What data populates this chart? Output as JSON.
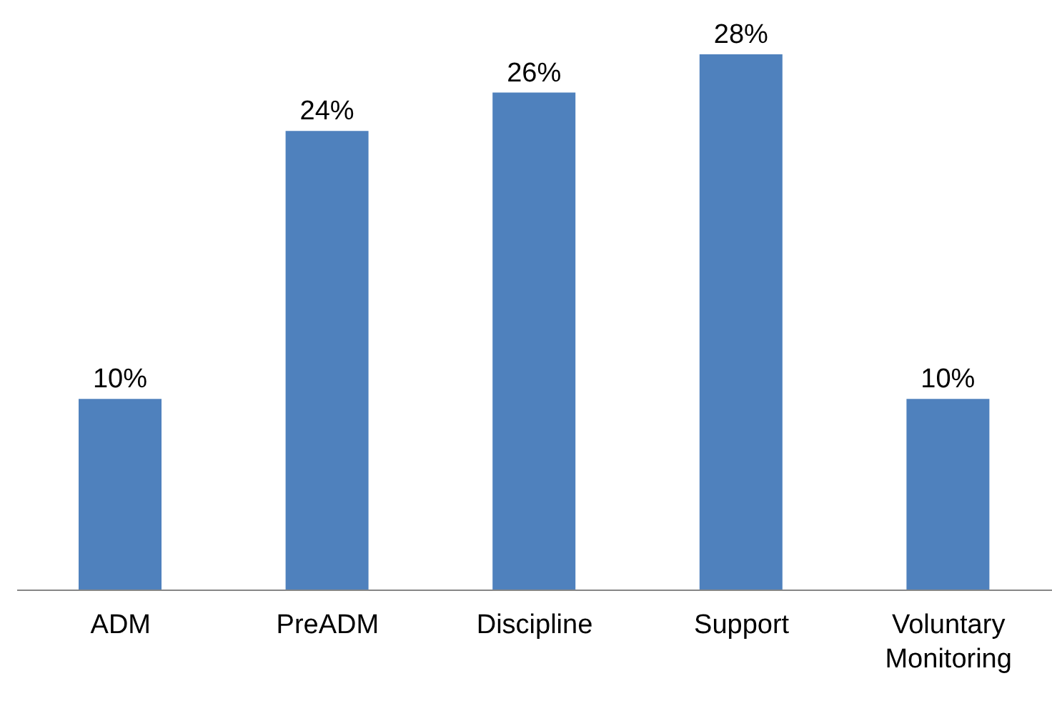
{
  "chart_data": {
    "type": "bar",
    "categories": [
      "ADM",
      "PreADM",
      "Discipline",
      "Support",
      "Voluntary Monitoring"
    ],
    "values": [
      10,
      24,
      26,
      28,
      10
    ],
    "value_labels": [
      "10%",
      "24%",
      "26%",
      "28%",
      "10%"
    ],
    "color": "#4f81bd",
    "ylim": [
      0,
      28
    ],
    "grid": false
  }
}
